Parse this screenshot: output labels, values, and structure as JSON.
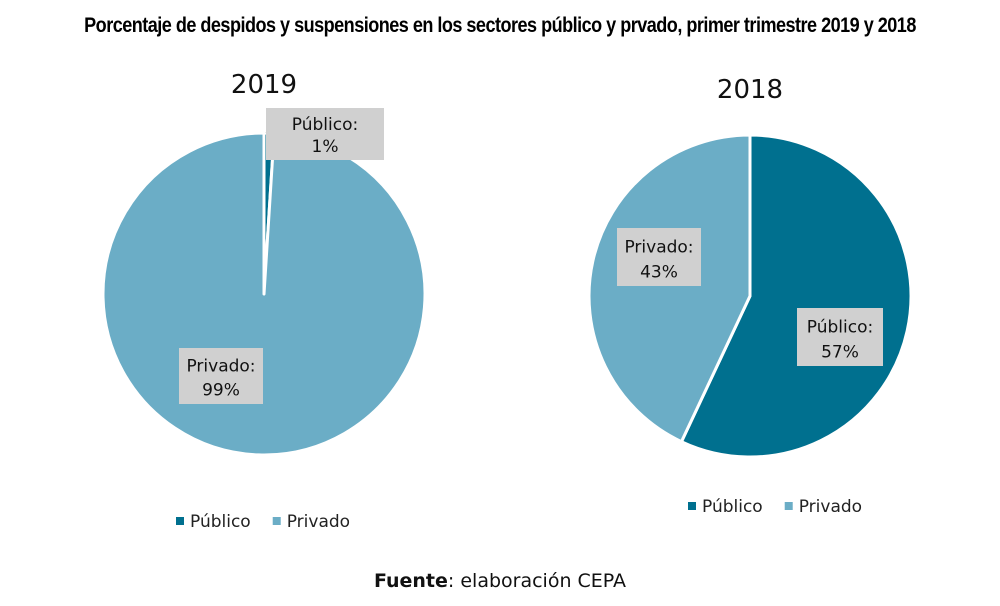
{
  "title": "Porcentaje de despidos y suspensiones en los sectores público y prvado, primer trimestre 2019 y 2018",
  "source": {
    "label": "Fuente",
    "text": ": elaboración CEPA"
  },
  "colors": {
    "publico": "#00708F",
    "privado": "#6BADC6",
    "label_box": "#D0D0D0"
  },
  "chart_data": [
    {
      "type": "pie",
      "title": "2019",
      "slices": [
        {
          "name": "Público",
          "value": 1,
          "label": "Público:",
          "pct": "1%"
        },
        {
          "name": "Privado",
          "value": 99,
          "label": "Privado:",
          "pct": "99%"
        }
      ],
      "legend": [
        "Público",
        "Privado"
      ],
      "legend_position": "bottom"
    },
    {
      "type": "pie",
      "title": "2018",
      "slices": [
        {
          "name": "Público",
          "value": 57,
          "label": "Público:",
          "pct": "57%"
        },
        {
          "name": "Privado",
          "value": 43,
          "label": "Privado:",
          "pct": "43%"
        }
      ],
      "legend": [
        "Público",
        "Privado"
      ],
      "legend_position": "bottom"
    }
  ]
}
